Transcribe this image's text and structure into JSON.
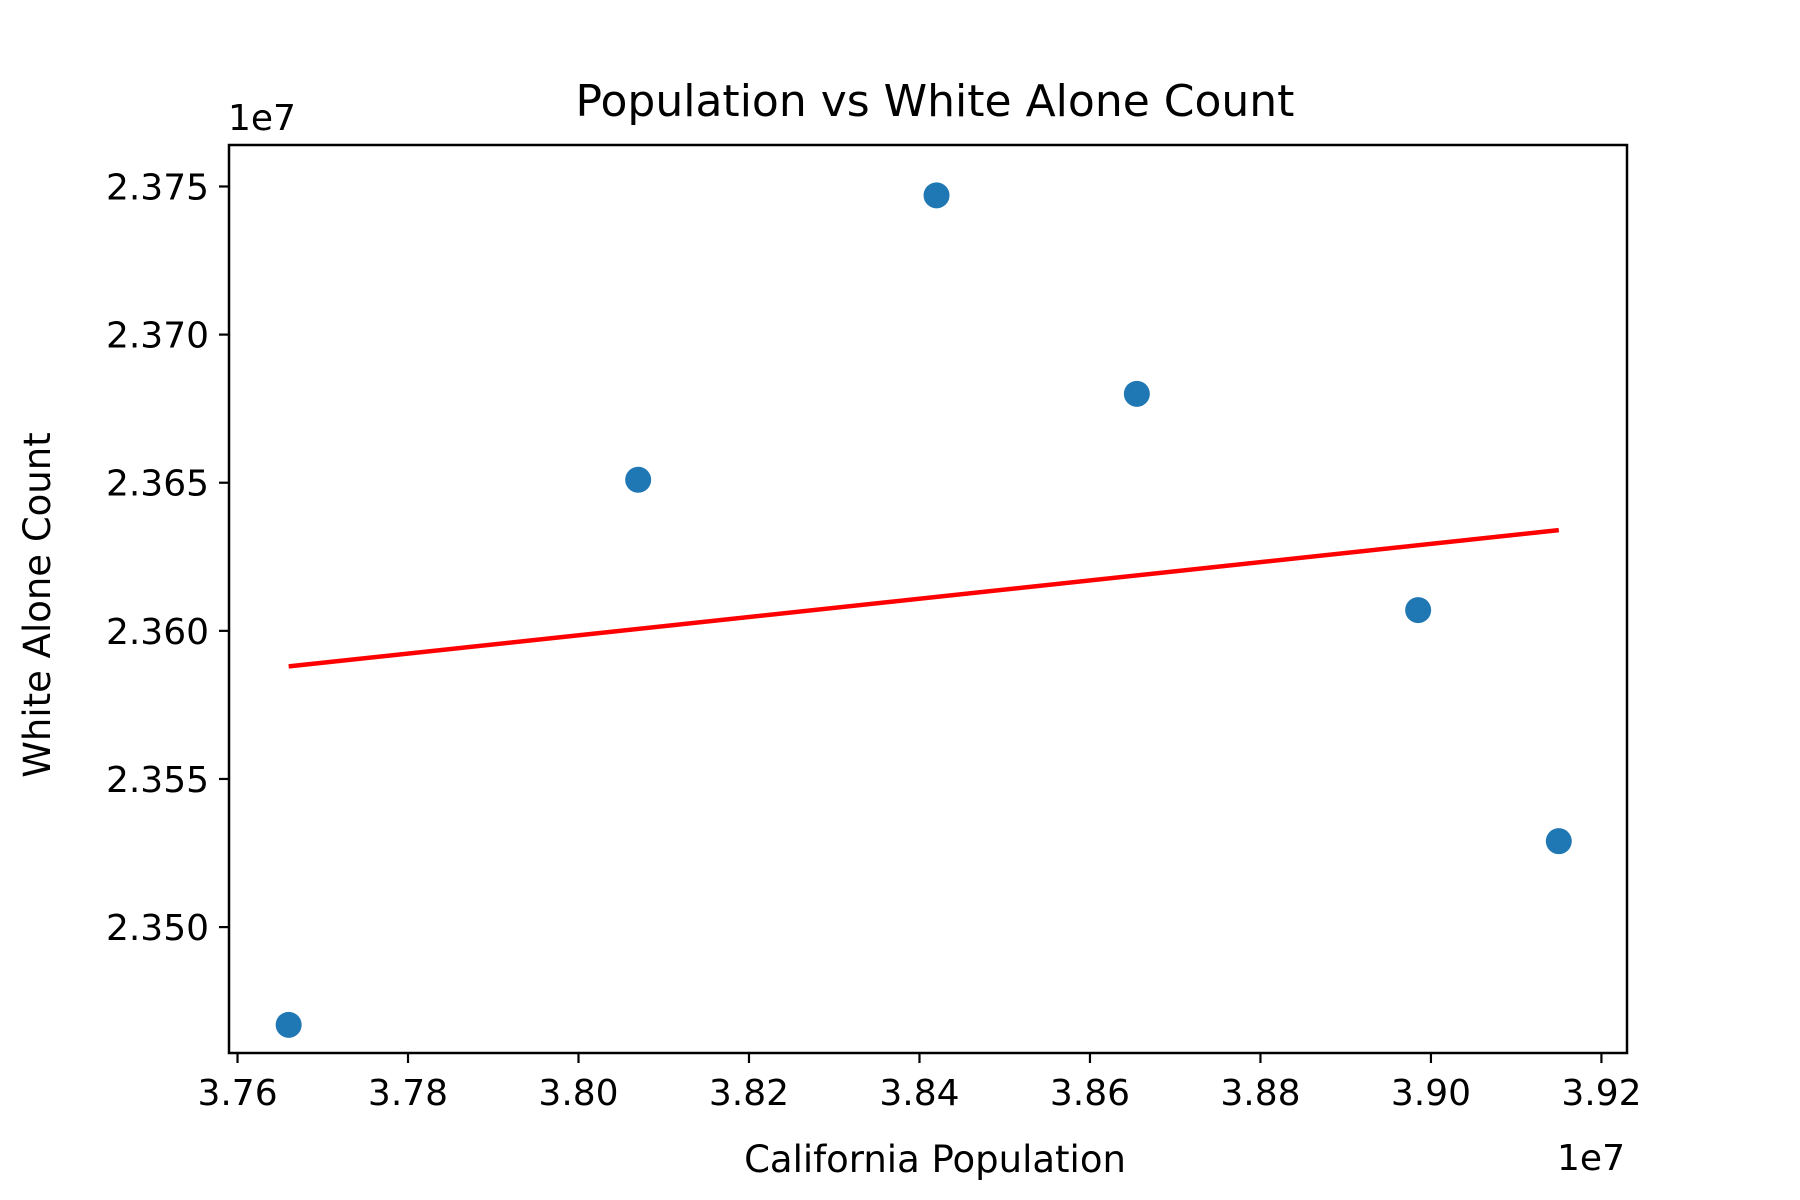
{
  "chart_data": {
    "type": "scatter",
    "title": "Population vs White Alone Count",
    "xlabel": "California Population",
    "ylabel": "White Alone Count",
    "x_offset_label": "1e7",
    "y_offset_label": "1e7",
    "xlim": [
      37.59,
      39.23
    ],
    "ylim": [
      23.4575,
      23.764
    ],
    "x_ticks": [
      37.6,
      37.8,
      38.0,
      38.2,
      38.4,
      38.6,
      38.8,
      39.0,
      39.2
    ],
    "x_tick_labels": [
      "3.76",
      "3.78",
      "3.80",
      "3.82",
      "3.84",
      "3.86",
      "3.88",
      "3.90",
      "3.92"
    ],
    "y_ticks": [
      23.5,
      23.55,
      23.6,
      23.65,
      23.7,
      23.75
    ],
    "y_tick_labels": [
      "2.350",
      "2.355",
      "2.360",
      "2.365",
      "2.370",
      "2.375"
    ],
    "grid": false,
    "series": [
      {
        "type": "scatter",
        "color": "#1f77b4",
        "x": [
          37.66,
          38.07,
          38.42,
          38.655,
          38.985,
          39.15
        ],
        "y": [
          23.467,
          23.651,
          23.747,
          23.68,
          23.607,
          23.529
        ]
      },
      {
        "type": "line",
        "color": "#ff0000",
        "x": [
          37.66,
          39.15
        ],
        "y": [
          23.588,
          23.634
        ]
      }
    ],
    "colors": {
      "points": "#1f77b4",
      "fit_line": "#ff0000",
      "axes": "#000000"
    }
  }
}
